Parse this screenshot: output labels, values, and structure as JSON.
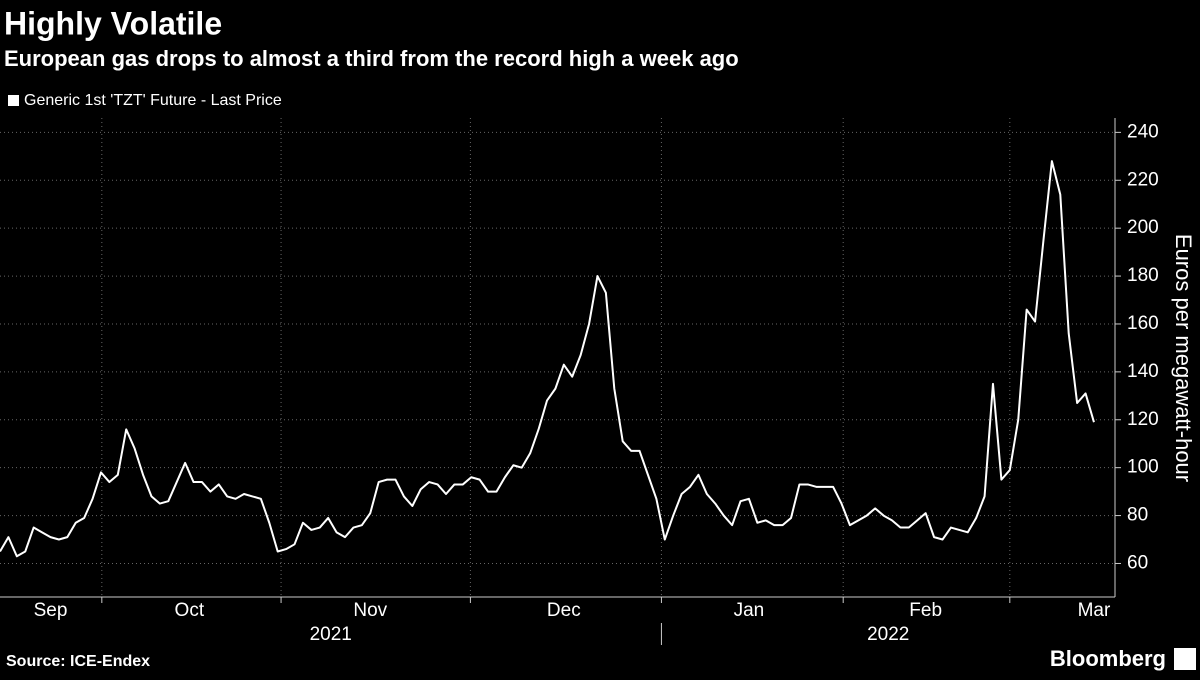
{
  "chart_data": {
    "type": "line",
    "title": "Highly Volatile",
    "subtitle": "European gas drops to almost a third from the record high a week ago",
    "y_label": "Euros per megawatt-hour",
    "source": "Source: ICE-Endex",
    "brand": "Bloomberg",
    "x_groups": [
      "2021",
      "2022"
    ],
    "xlim": [
      0,
      132.5
    ],
    "xticks": [
      {
        "value": 6,
        "label": "Sep"
      },
      {
        "value": 22.5,
        "label": "Oct"
      },
      {
        "value": 44,
        "label": "Nov"
      },
      {
        "value": 67,
        "label": "Dec"
      },
      {
        "value": 89,
        "label": "Jan"
      },
      {
        "value": 110,
        "label": "Feb"
      },
      {
        "value": 130,
        "label": "Mar"
      }
    ],
    "xgrid": [
      12.1,
      33.4,
      55.9,
      78.6,
      100.2,
      120
    ],
    "ylim": [
      46,
      246
    ],
    "yticks": [
      60,
      80,
      100,
      120,
      140,
      160,
      180,
      200,
      220,
      240
    ],
    "grid": true,
    "series": [
      {
        "name": "Generic 1st 'TZT' Future - Last Price",
        "color": "#ffffff",
        "x": [
          0,
          1,
          2,
          3,
          4,
          5,
          6,
          7,
          8,
          9,
          10,
          11,
          12,
          13,
          14,
          15,
          16,
          17,
          18,
          19,
          20,
          21,
          22,
          23,
          24,
          25,
          26,
          27,
          28,
          29,
          30,
          31,
          32,
          33,
          34,
          35,
          36,
          37,
          38,
          39,
          40,
          41,
          42,
          43,
          44,
          45,
          46,
          47,
          48,
          49,
          50,
          51,
          52,
          53,
          54,
          55,
          56,
          57,
          58,
          59,
          60,
          61,
          62,
          63,
          64,
          65,
          66,
          67,
          68,
          69,
          70,
          71,
          72,
          73,
          74,
          75,
          76,
          77,
          78,
          79,
          80,
          81,
          82,
          83,
          84,
          85,
          86,
          87,
          88,
          89,
          90,
          91,
          92,
          93,
          94,
          95,
          96,
          97,
          98,
          99,
          100,
          101,
          102,
          103,
          104,
          105,
          106,
          107,
          108,
          109,
          110,
          111,
          112,
          113,
          114,
          115,
          116,
          117,
          118,
          119,
          120,
          121,
          122,
          123,
          124,
          125,
          126,
          127,
          128,
          129,
          130
        ],
        "values": [
          65,
          71,
          63,
          65,
          75,
          73,
          71,
          70,
          71,
          77,
          79,
          87,
          98,
          94,
          97,
          116,
          108,
          97,
          88,
          85,
          86,
          94,
          102,
          94,
          94,
          90,
          93,
          88,
          87,
          89,
          88,
          87,
          77,
          65,
          66,
          68,
          77,
          74,
          75,
          79,
          73,
          71,
          75,
          76,
          81,
          94,
          95,
          95,
          88,
          84,
          91,
          94,
          93,
          89,
          93,
          93,
          96,
          95,
          90,
          90,
          96,
          101,
          100,
          106,
          116,
          128,
          133,
          143,
          138,
          147,
          160,
          180,
          173,
          133,
          111,
          107,
          107,
          97,
          87,
          70,
          80,
          89,
          92,
          97,
          89,
          85,
          80,
          76,
          86,
          87,
          77,
          78,
          76,
          76,
          79,
          93,
          93,
          92,
          92,
          92,
          85,
          76,
          78,
          80,
          83,
          80,
          78,
          75,
          75,
          78,
          81,
          71,
          70,
          75,
          74,
          73,
          79,
          88,
          135,
          95,
          99,
          120,
          166,
          161,
          195,
          228,
          214,
          156,
          127,
          131,
          119
        ]
      }
    ]
  }
}
